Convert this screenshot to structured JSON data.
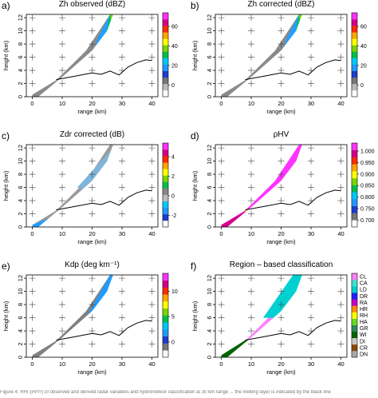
{
  "panels": [
    {
      "id": "a",
      "label": "a)",
      "title": "Zh observed (dBZ)",
      "xlabel": "range (km)",
      "ylabel": "height (km)",
      "xticks": [
        "0",
        "10",
        "20",
        "30",
        "40"
      ],
      "yticks": [
        "0",
        "2",
        "4",
        "6",
        "8",
        "10",
        "12"
      ],
      "colorbar": {
        "type": "gradient",
        "ticks": [
          "60",
          "40",
          "20",
          "0"
        ],
        "colors": [
          "#ffffff",
          "#bbbbbb",
          "#777777",
          "#1e3ccf",
          "#1f9bff",
          "#00c8ff",
          "#00c04a",
          "#7ad400",
          "#ffff00",
          "#ffa500",
          "#ff2a00",
          "#d4008a",
          "#ff33ff"
        ]
      }
    },
    {
      "id": "b",
      "label": "b)",
      "title": "Zh corrected (dBZ)",
      "xlabel": "range (km)",
      "ylabel": "height (km)",
      "xticks": [
        "0",
        "10",
        "20",
        "30",
        "40"
      ],
      "yticks": [
        "0",
        "2",
        "4",
        "6",
        "8",
        "10",
        "12"
      ],
      "colorbar": {
        "type": "gradient",
        "ticks": [
          "60",
          "40",
          "20",
          "0"
        ],
        "colors": [
          "#ffffff",
          "#bbbbbb",
          "#777777",
          "#1e3ccf",
          "#1f9bff",
          "#00c8ff",
          "#00c04a",
          "#7ad400",
          "#ffff00",
          "#ffa500",
          "#ff2a00",
          "#d4008a",
          "#ff33ff"
        ]
      }
    },
    {
      "id": "c",
      "label": "c)",
      "title": "Zdr corrected (dB)",
      "xlabel": "range (km)",
      "ylabel": "height (km)",
      "xticks": [
        "0",
        "10",
        "20",
        "30",
        "40"
      ],
      "yticks": [
        "0",
        "2",
        "4",
        "6",
        "8",
        "10",
        "12"
      ],
      "colorbar": {
        "type": "gradient",
        "ticks": [
          "4",
          "2",
          "0",
          "-2"
        ],
        "colors": [
          "#ffffff",
          "#1e3ccf",
          "#1f9bff",
          "#00c8ff",
          "#bbbbbb",
          "#888888",
          "#00c04a",
          "#7ad400",
          "#ffff00",
          "#ffa500",
          "#ff2a00",
          "#d4008a",
          "#ff33ff"
        ]
      }
    },
    {
      "id": "d",
      "label": "d)",
      "title": "ρHV",
      "xlabel": "range (km)",
      "ylabel": "height (km)",
      "xticks": [
        "0",
        "10",
        "20",
        "30",
        "40"
      ],
      "yticks": [
        "0",
        "2",
        "4",
        "6",
        "8",
        "10",
        "12"
      ],
      "colorbar": {
        "type": "gradient",
        "ticks": [
          "1.000",
          "0.950",
          "0.900",
          "0.850",
          "0.800",
          "0.750",
          "0.700"
        ],
        "colors": [
          "#ffffff",
          "#777777",
          "#1e3ccf",
          "#1f9bff",
          "#00c8ff",
          "#00c04a",
          "#7ad400",
          "#ffff00",
          "#ffa500",
          "#ff2a00",
          "#d4008a",
          "#ff33ff"
        ]
      }
    },
    {
      "id": "e",
      "label": "e)",
      "title": "Kdp (deg km⁻¹)",
      "xlabel": "range (km)",
      "ylabel": "height (km)",
      "xticks": [
        "0",
        "10",
        "20",
        "30",
        "40"
      ],
      "yticks": [
        "0",
        "2",
        "4",
        "6",
        "8",
        "10",
        "12"
      ],
      "colorbar": {
        "type": "gradient",
        "ticks": [
          "10",
          "5",
          "0"
        ],
        "colors": [
          "#ffffff",
          "#777777",
          "#1e3ccf",
          "#1f9bff",
          "#00c8ff",
          "#00c04a",
          "#7ad400",
          "#ffff00",
          "#ffa500",
          "#ff2a00",
          "#d4008a",
          "#ff33ff"
        ]
      }
    },
    {
      "id": "f",
      "label": "f)",
      "title": "Region – based classification",
      "xlabel": "range (km)",
      "ylabel": "height (km)",
      "xticks": [
        "0",
        "10",
        "20",
        "30",
        "40"
      ],
      "yticks": [
        "0",
        "2",
        "4",
        "6",
        "8",
        "10",
        "12"
      ],
      "colorbar": {
        "type": "discrete",
        "ticks": [
          "CL",
          "CA",
          "LD",
          "DR",
          "RA",
          "HR",
          "RH",
          "HA",
          "GR",
          "WI",
          "DI",
          "CR",
          "DN"
        ],
        "colors": [
          "#aaaaaa",
          "#8a4a00",
          "#c8c8c8",
          "#006400",
          "#2e8b57",
          "#66dd22",
          "#ffff00",
          "#ff8c00",
          "#c800c8",
          "#2020ff",
          "#00d0d0",
          "#40e0d0",
          "#ff80ff"
        ]
      }
    }
  ],
  "caption": "Figure 4. RHI (PPI?) of observed and derived radar variables and hydrometeor classification at 30 km range ... the melting layer is indicated by the black line"
}
